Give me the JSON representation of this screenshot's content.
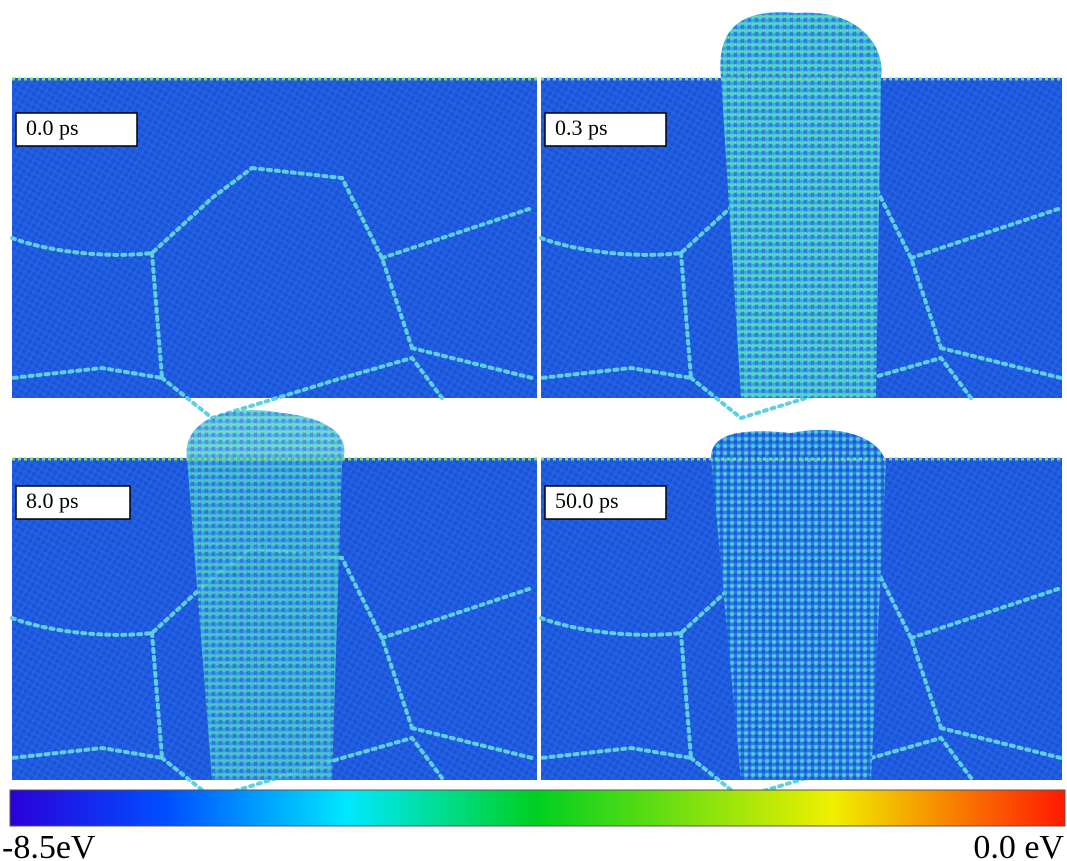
{
  "panels": [
    {
      "label": "0.0 ps"
    },
    {
      "label": "0.3 ps"
    },
    {
      "label": "8.0 ps"
    },
    {
      "label": "50.0 ps"
    }
  ],
  "colorbar": {
    "min_label": "-8.5eV",
    "max_label": "0.0 eV"
  }
}
